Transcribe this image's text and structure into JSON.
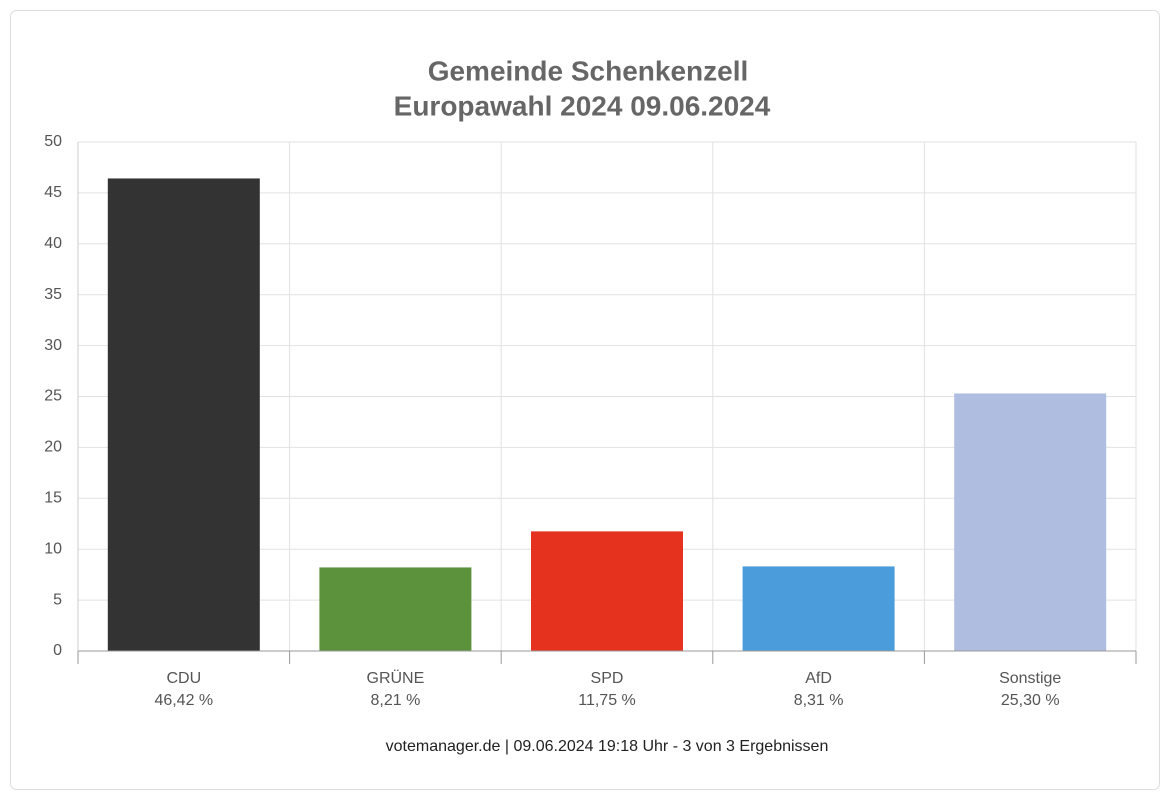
{
  "chart_data": {
    "type": "bar",
    "title": "Gemeinde Schenkenzell",
    "subtitle": "Europawahl 2024 09.06.2024",
    "categories": [
      "CDU",
      "GRÜNE",
      "SPD",
      "AfD",
      "Sonstige"
    ],
    "values": [
      46.42,
      8.21,
      11.75,
      8.31,
      25.3
    ],
    "value_labels": [
      "46,42 %",
      "8,21 %",
      "11,75 %",
      "8,31 %",
      "25,30 %"
    ],
    "colors": [
      "#333333",
      "#5c923b",
      "#e4321f",
      "#4b9cda",
      "#afbde1"
    ],
    "ylim": [
      0,
      50
    ],
    "yticks": [
      0,
      5,
      10,
      15,
      20,
      25,
      30,
      35,
      40,
      45,
      50
    ],
    "grid": true,
    "source": "votemanager.de | 09.06.2024 19:18 Uhr - 3 von 3 Ergebnissen"
  }
}
